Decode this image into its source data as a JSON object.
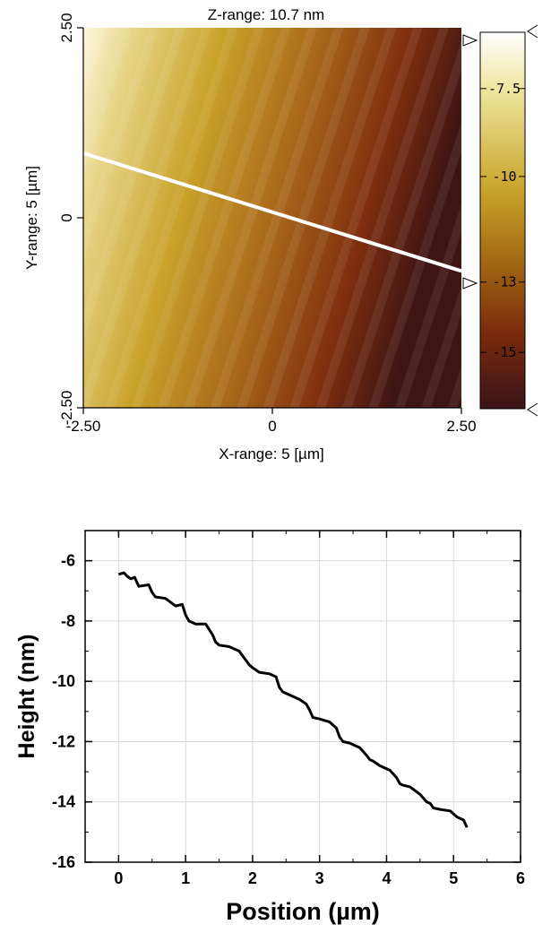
{
  "chart_data": [
    {
      "type": "heatmap",
      "title": "Z-range: 10.7 nm",
      "xlabel": "X-range: 5 [µm]",
      "ylabel": "Y-range: 5 [µm]",
      "xlim": [
        -2.5,
        2.5
      ],
      "ylim": [
        -2.5,
        2.5
      ],
      "x_ticks": [
        "-2.50",
        "0",
        "2.50"
      ],
      "y_ticks": [
        "-2.50",
        "0",
        "2.50"
      ],
      "colorbar": {
        "ticks": [
          "-7.5",
          "-10",
          "-13",
          "-15"
        ],
        "tick_values": [
          -7.5,
          -10,
          -13,
          -15
        ],
        "range": [
          -16.6,
          -5.9
        ],
        "colors": [
          "#ffffff",
          "#f3e9a8",
          "#c8a020",
          "#a06a10",
          "#7a2a0a",
          "#3a1414"
        ]
      },
      "profile_line": {
        "from": [
          -2.5,
          0.85
        ],
        "to": [
          2.5,
          -0.7
        ]
      }
    },
    {
      "type": "line",
      "xlabel": "Position (µm)",
      "ylabel": "Height (nm)",
      "xlim": [
        -0.5,
        6
      ],
      "ylim": [
        -16,
        -5
      ],
      "x_ticks": [
        0,
        1,
        2,
        3,
        4,
        5,
        6
      ],
      "y_ticks": [
        -16,
        -14,
        -12,
        -10,
        -8,
        -6
      ],
      "grid": true,
      "series": [
        {
          "x": [
            0.0,
            0.08,
            0.12,
            0.18,
            0.24,
            0.3,
            0.45,
            0.5,
            0.55,
            0.7,
            0.85,
            0.95,
            1.0,
            1.05,
            1.15,
            1.3,
            1.4,
            1.45,
            1.5,
            1.65,
            1.8,
            1.9,
            1.95,
            2.0,
            2.1,
            2.25,
            2.35,
            2.4,
            2.45,
            2.55,
            2.7,
            2.8,
            2.85,
            2.9,
            3.0,
            3.15,
            3.25,
            3.3,
            3.35,
            3.45,
            3.6,
            3.7,
            3.75,
            3.8,
            3.9,
            4.05,
            4.15,
            4.2,
            4.25,
            4.35,
            4.5,
            4.6,
            4.65,
            4.7,
            4.8,
            4.95,
            5.05,
            5.1,
            5.15,
            5.2
          ],
          "y": [
            -6.45,
            -6.4,
            -6.5,
            -6.6,
            -6.55,
            -6.85,
            -6.8,
            -7.05,
            -7.2,
            -7.25,
            -7.5,
            -7.45,
            -7.8,
            -8.0,
            -8.1,
            -8.1,
            -8.45,
            -8.7,
            -8.8,
            -8.85,
            -9.0,
            -9.3,
            -9.45,
            -9.55,
            -9.7,
            -9.75,
            -9.85,
            -10.2,
            -10.35,
            -10.45,
            -10.6,
            -10.75,
            -10.95,
            -11.2,
            -11.25,
            -11.35,
            -11.55,
            -11.85,
            -12.0,
            -12.05,
            -12.2,
            -12.45,
            -12.6,
            -12.65,
            -12.8,
            -12.95,
            -13.2,
            -13.4,
            -13.45,
            -13.5,
            -13.75,
            -14.0,
            -14.05,
            -14.2,
            -14.25,
            -14.3,
            -14.5,
            -14.55,
            -14.6,
            -14.85
          ]
        }
      ]
    }
  ]
}
